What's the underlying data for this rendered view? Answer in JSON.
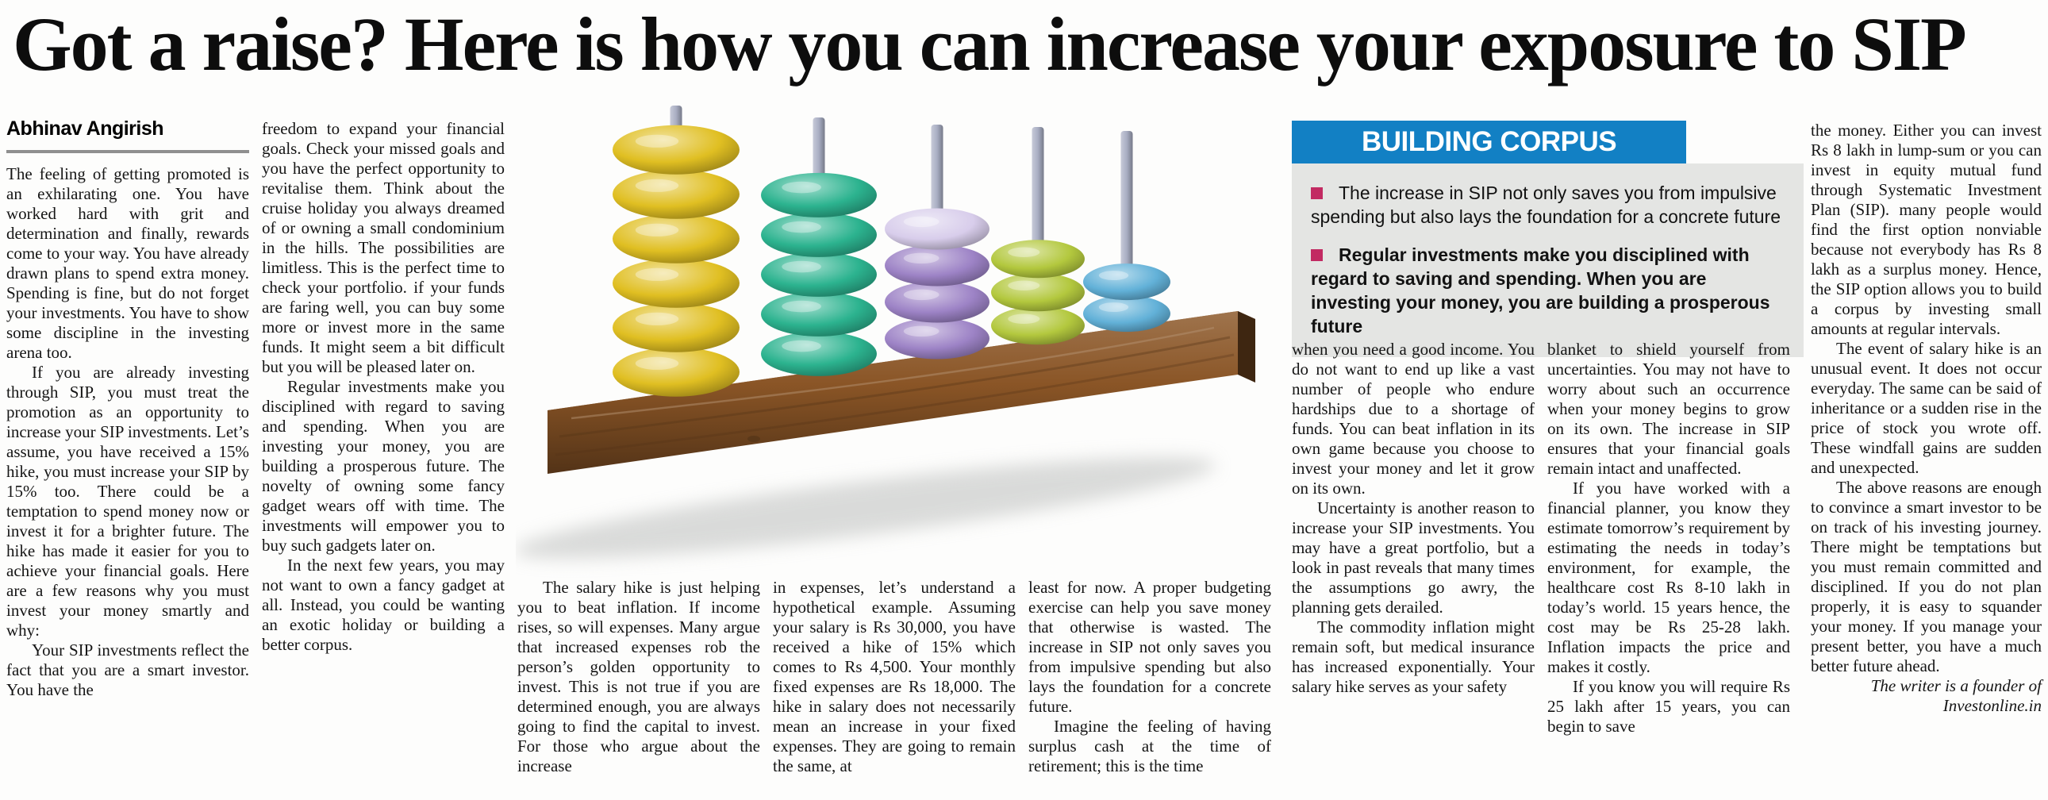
{
  "article": {
    "headline": "Got a raise? Here is how you can increase your exposure to SIP",
    "byline": "Abhinav Angirish",
    "columns": [
      {
        "paras": [
          "The feeling of getting promoted is an exhilarating one. You have worked hard with grit and determination and finally, rewards come to your way. You have already drawn plans to spend extra money. Spending is fine, but do not forget your investments. You have to show some discipline in the investing arena too.",
          "If you are already investing through SIP, you must treat the promotion as an opportunity to increase your SIP investments. Let’s assume, you have received a 15% hike, you must increase your SIP by 15% too. There could be a temptation to spend money now or invest it for a brighter future. The hike has made it easier for you to achieve your financial goals. Here are a few reasons why you must invest your money smartly and why:",
          "Your SIP investments reflect the fact that you are a smart investor. You have the"
        ]
      },
      {
        "paras": [
          "freedom to expand your financial goals. Check your missed goals and you have the perfect opportunity to revitalise them. Think about the cruise holiday you always dreamed of or owning a small condominium in the hills. The possibilities are limitless. This is the perfect time to check your portfolio. if your funds are faring well, you can buy some more or invest more in the same funds. It might seem a bit difficult but you will be pleased later on.",
          "Regular investments make you disciplined with regard to saving and spending. When you are investing your money, you are building a prosperous future. The novelty of owning some fancy gadget wears off with time. The investments will empower you to buy such gadgets later on.",
          "In the next few years, you may not want to own a fancy gadget at all. Instead, you could be wanting an exotic holiday or building a better corpus."
        ]
      },
      {
        "paras": [
          "The salary hike is just helping you to beat inflation. If income rises, so will expenses. Many argue that increased expenses rob the person’s golden opportunity to invest. This is not true if you are determined enough, you are always going to find the capital to invest. For those who argue about the increase"
        ]
      },
      {
        "paras": [
          "in expenses, let’s understand a hypothetical example. Assuming your salary is Rs 30,000, you have received a hike of 15% which comes to Rs 4,500. Your monthly fixed expenses are Rs 18,000. The hike in salary does not necessarily mean an increase in your fixed expenses. They are going to remain the same, at"
        ]
      },
      {
        "paras": [
          "least for now. A proper budgeting exercise can help you save money that otherwise is wasted. The increase in SIP not only saves you from impulsive spending but also lays the foundation for a concrete future.",
          "Imagine the feeling of having surplus cash at the time of retirement; this is the time"
        ]
      },
      {
        "paras": [
          "when you need a good income. You do not want to end up like a vast number of people who endure hardships due to a shortage of funds. You can beat inflation in its own game because you choose to invest your money and let it grow on its own.",
          "Uncertainty is another reason to increase your SIP investments. You may have a great portfolio, but a look in past reveals that many times the assumptions go awry, the planning gets derailed.",
          "The commodity inflation might remain soft, but medical insurance has increased exponentially. Your salary hike serves as your safety"
        ]
      },
      {
        "paras": [
          "blanket to shield yourself from uncertainties. You may not have to worry about such an occurrence when your money begins to grow on its own. The increase in SIP ensures that your financial goals remain intact and unaffected.",
          "If you have worked with a financial planner, you know they estimate tomorrow’s requirement by estimating the needs in today’s environment, for example, the healthcare cost Rs 8-10 lakh in today’s world. 15 years hence, the cost may be Rs 25-28 lakh. Inflation impacts the price and makes it costly.",
          "If you know you will require Rs 25 lakh after 15 years, you can begin to save"
        ]
      },
      {
        "paras": [
          "the money. Either you can invest Rs 8 lakh in lump-sum or you can invest in equity mutual fund through Systematic Investment Plan (SIP). many people would find the first option nonviable because not everybody has Rs 8 lakh as a surplus money. Hence, the SIP option allows you to build a corpus by investing small amounts at regular intervals.",
          "The event of salary hike is an unusual event. It does not occur everyday. The same can be said of inheritance or a sudden rise in the price of stock you wrote off. These windfall gains are sudden and unexpected.",
          "The above reasons are enough to convince a smart investor to be on track of his investing journey. There might be temptations but you must remain committed and disciplined. If you do not plan properly, it is easy to squander your money. If you manage your present better, you have a much better future ahead."
        ]
      }
    ],
    "infobox": {
      "title": "BUILDING CORPUS",
      "bullets": [
        "The increase in SIP not only saves you from impulsive spending but also lays the foundation for a concrete future",
        "Regular investments make you disciplined with regard to saving and spending. When you are investing your money, you are building a prosperous future"
      ]
    },
    "credit": {
      "line1": "The writer is a founder of",
      "line2": "Investonline.in"
    },
    "abacus": {
      "rods": [
        {
          "color": "#e0bf22",
          "beads": 6
        },
        {
          "color": "#2cb38f",
          "beads": 5
        },
        {
          "color": "#9d83c6",
          "beads": 4,
          "top_color": "#d8cdeb"
        },
        {
          "color": "#b3c83e",
          "beads": 3
        },
        {
          "color": "#62b1d8",
          "beads": 2
        }
      ],
      "base_color": "#8a5526",
      "rod_color": "#a9aec3"
    },
    "colors": {
      "headline": "#0d0d0d",
      "infobox_header_bg": "#1280c4",
      "infobox_header_text": "#ffffff",
      "infobox_body_bg": "#e4e5e3",
      "bullet_square": "#c22a62"
    }
  }
}
